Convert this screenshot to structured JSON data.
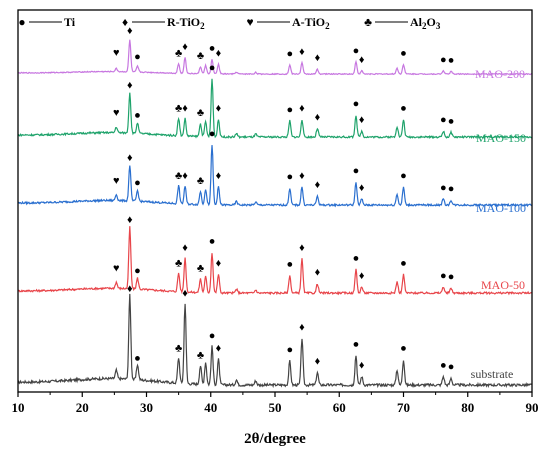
{
  "chart_data": {
    "type": "line",
    "title": "",
    "xlabel": "2θ/degree",
    "ylabel": "",
    "xlim": [
      10,
      90
    ],
    "x_ticks": [
      10,
      20,
      30,
      40,
      50,
      60,
      70,
      80,
      90
    ],
    "grid": false,
    "legend_position": "top-left",
    "legend": [
      {
        "symbol": "●",
        "label": "Ti"
      },
      {
        "symbol": "♦",
        "label": "R-TiO",
        "sub": "2"
      },
      {
        "symbol": "♥",
        "label": "A-TiO",
        "sub": "2"
      },
      {
        "symbol": "♣",
        "label": "Al",
        "sub": "2",
        "label2": "O",
        "sub2": "3"
      }
    ],
    "series": [
      {
        "name": "substrate",
        "color": "#444444"
      },
      {
        "name": "MAO-50",
        "color": "#e8454a"
      },
      {
        "name": "MAO-100",
        "color": "#2a6fcf"
      },
      {
        "name": "MAO-150",
        "color": "#1fa36b"
      },
      {
        "name": "MAO-200",
        "color": "#c777e0"
      }
    ]
  }
}
